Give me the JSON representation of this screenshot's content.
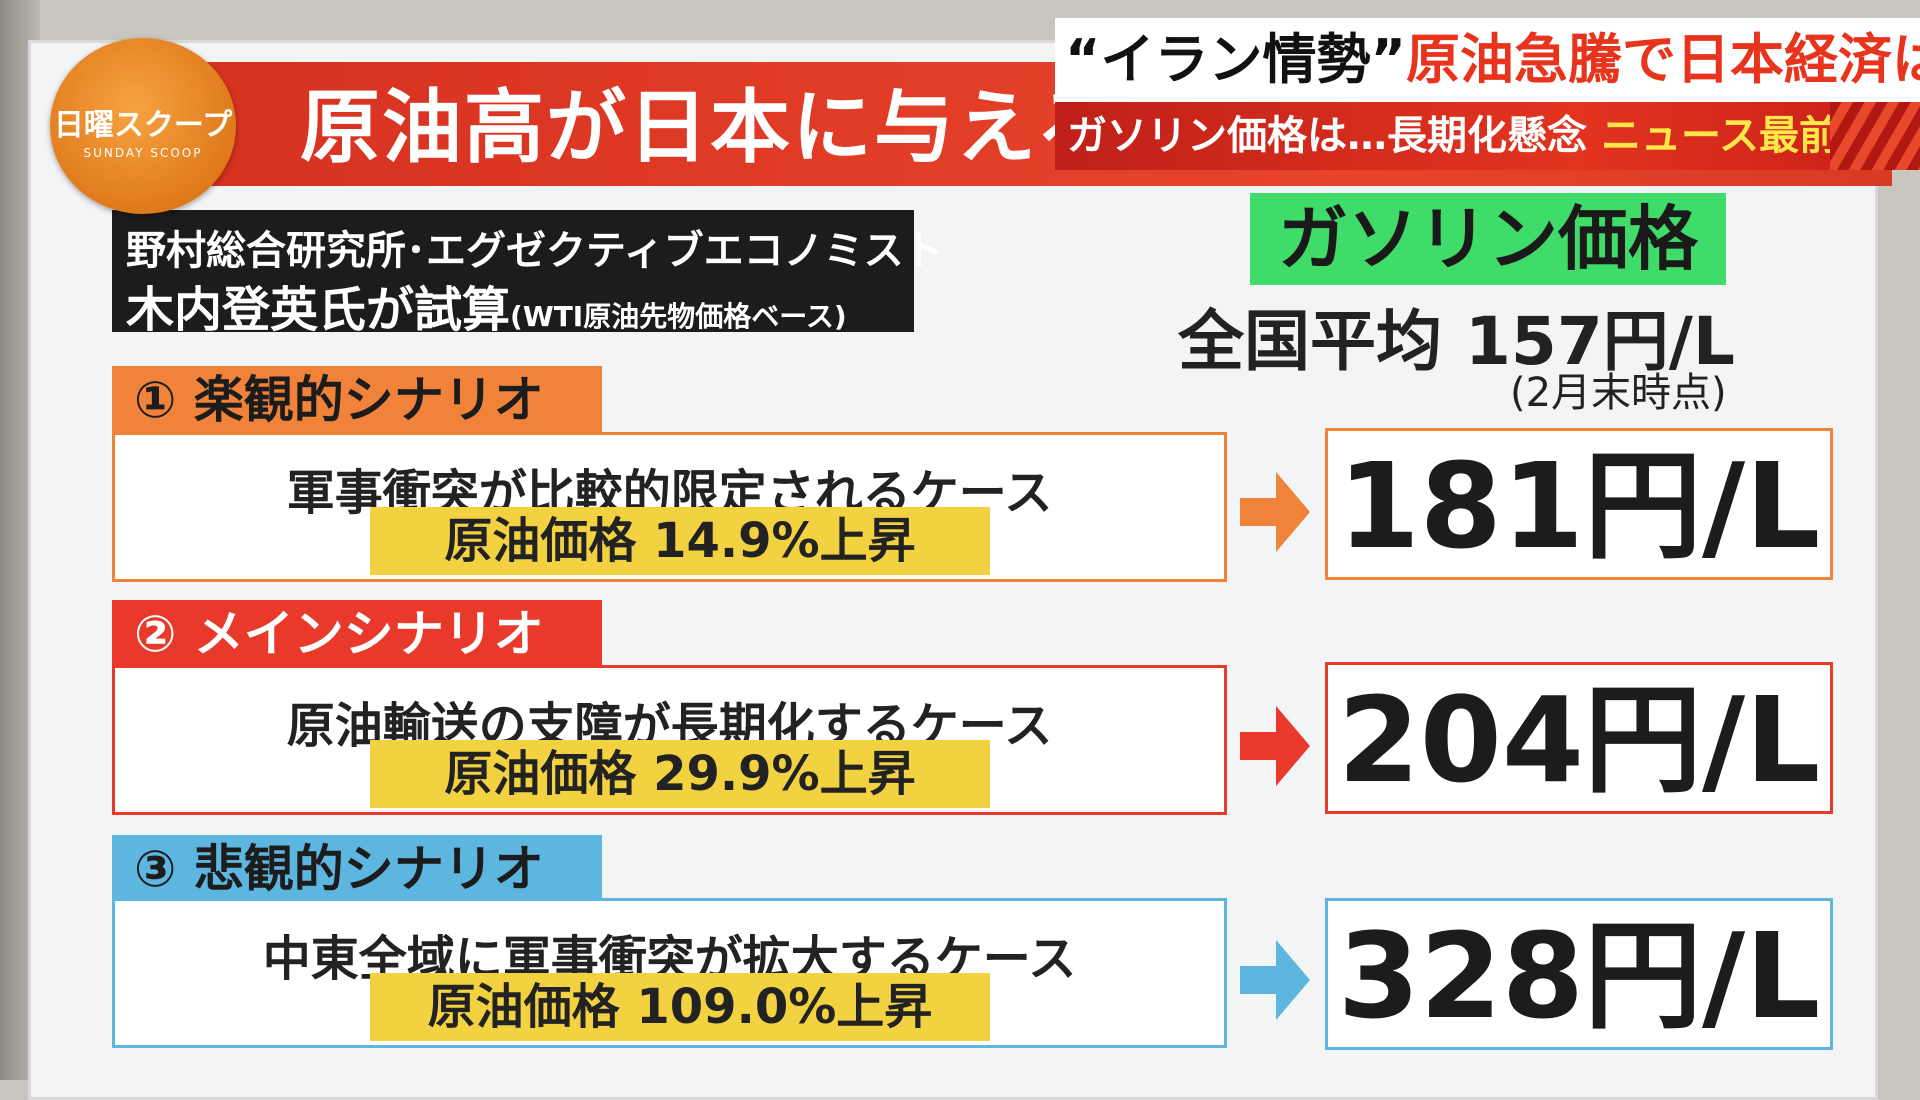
{
  "logo": {
    "main": "日曜スクープ",
    "sub": "SUNDAY SCOOP"
  },
  "ticker": {
    "quote": "“イラン情勢”",
    "headline": "原油急騰で日本経済は?",
    "sub": "ガソリン価格は…長期化懸念",
    "program": "ニュース最前線"
  },
  "board": {
    "title": "原油高が日本に与える",
    "source_line1": "野村総合研究所･エグゼクティブエコノミスト",
    "source_line2": "木内登英氏が試算",
    "source_note": "(WTI原油先物価格ベース)",
    "gas_label": "ガソリン価格",
    "average": "全国平均 157円/L",
    "average_note": "(2月末時点)",
    "scenarios": [
      {
        "label": "① 楽観的シナリオ",
        "desc": "軍事衝突が比較的限定されるケース",
        "rise": "原油価格 14.9%上昇",
        "price": "181円/L",
        "color": "#f0823a"
      },
      {
        "label": "② メインシナリオ",
        "desc": "原油輸送の支障が長期化するケース",
        "rise": "原油価格 29.9%上昇",
        "price": "204円/L",
        "color": "#e8392a"
      },
      {
        "label": "③ 悲観的シナリオ",
        "desc": "中東全域に軍事衝突が拡大するケース",
        "rise": "原油価格 109.0%上昇",
        "price": "328円/L",
        "color": "#5db6df"
      }
    ]
  }
}
